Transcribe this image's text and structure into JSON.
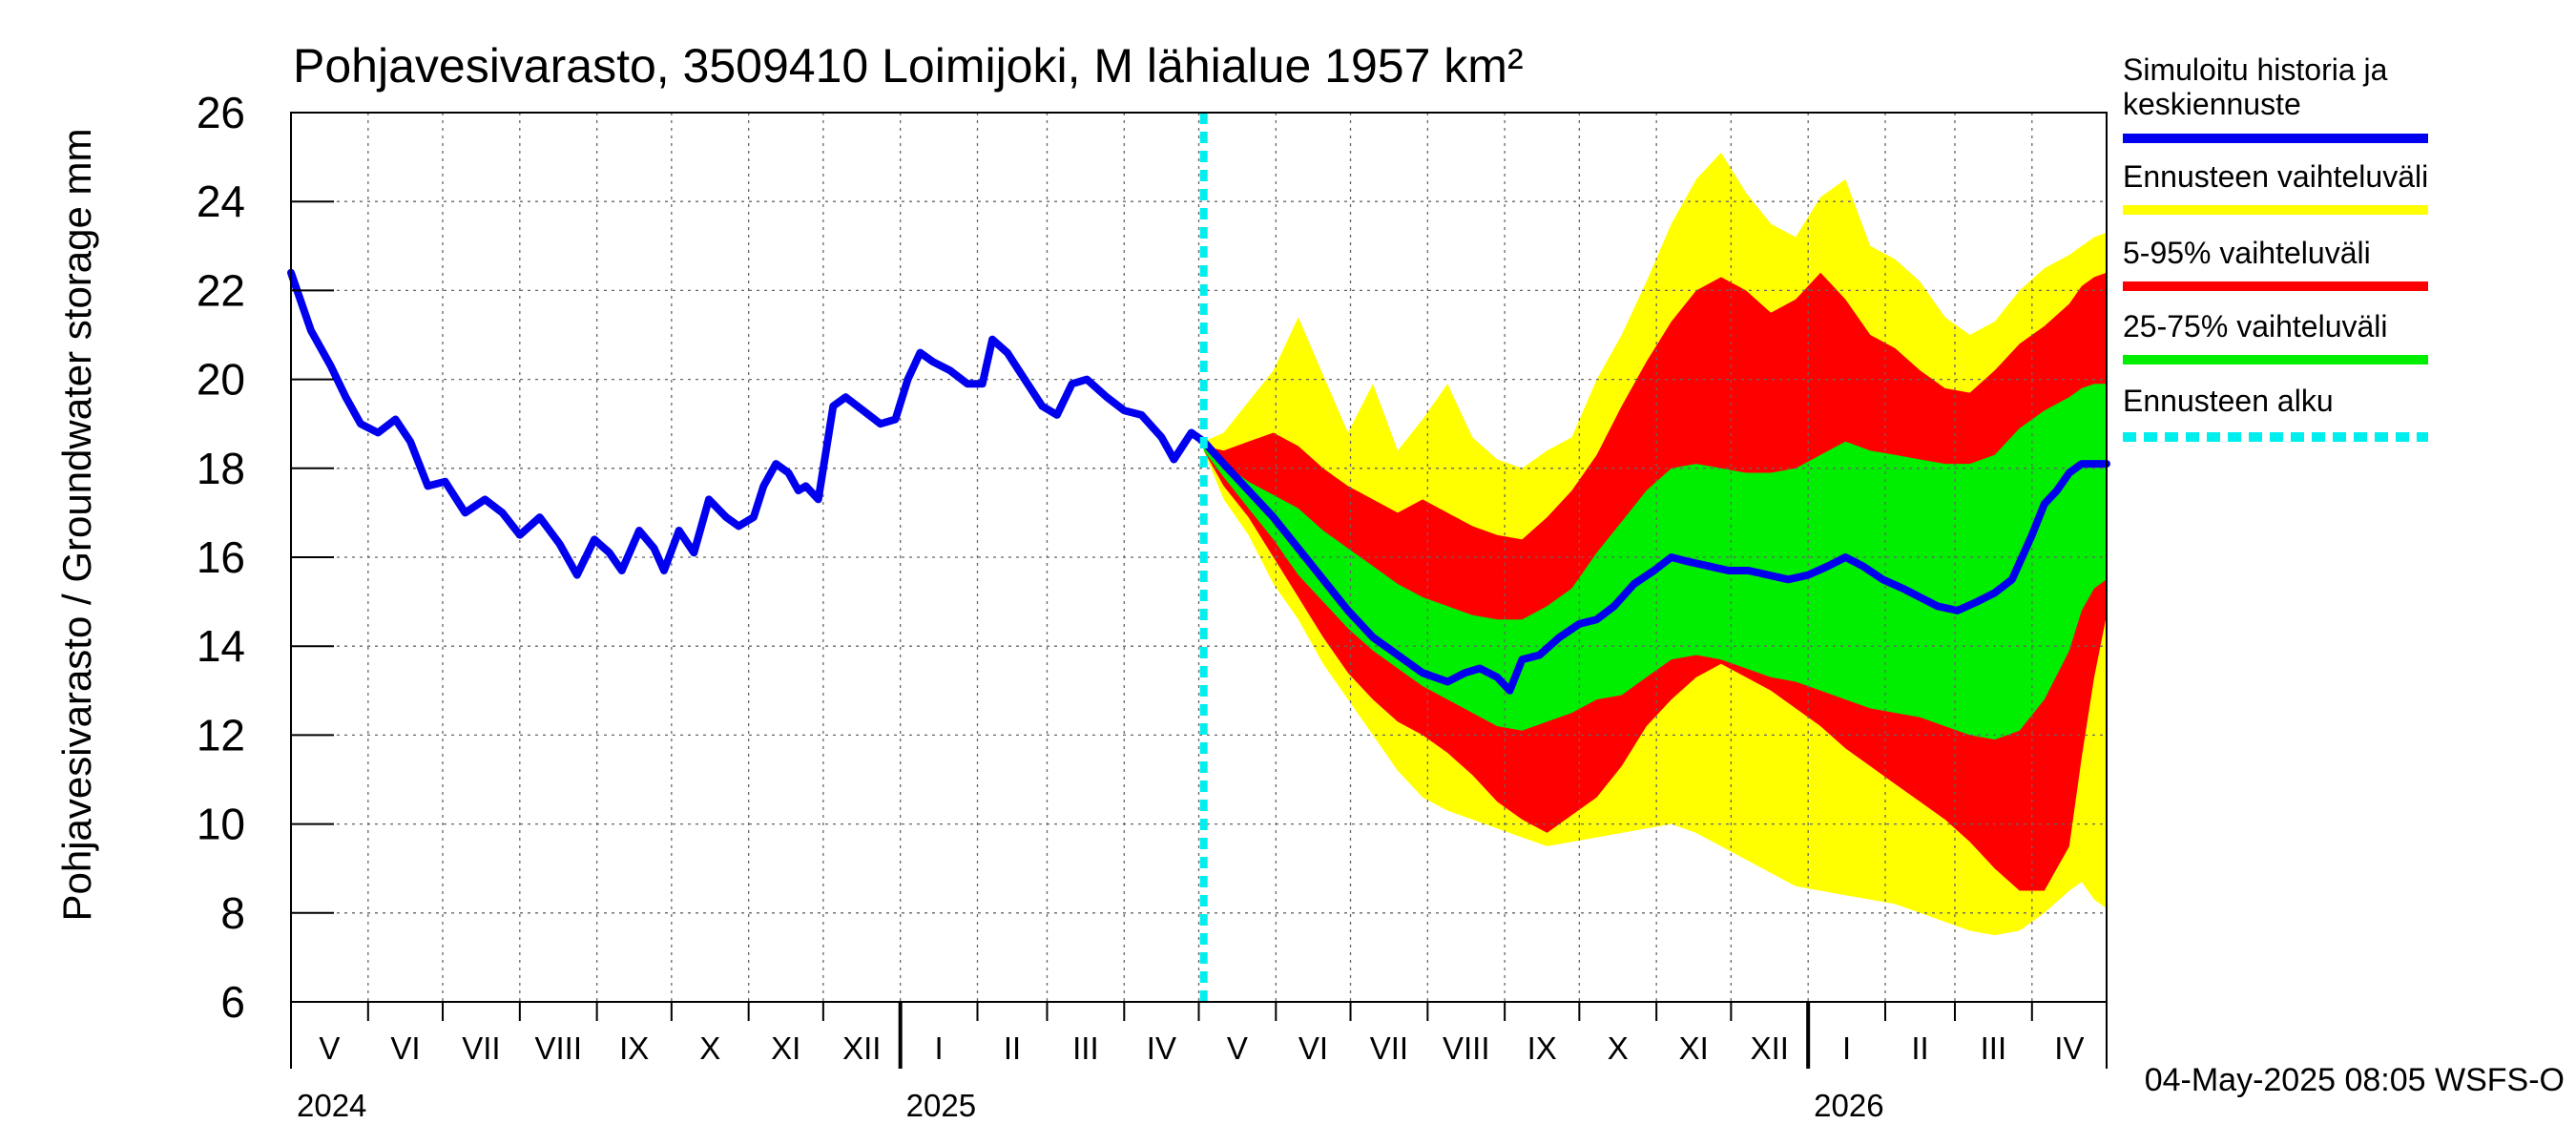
{
  "chart_data": {
    "type": "area",
    "title": "Pohjavesivarasto, 3509410 Loimijoki, M lähialue 1957 km²",
    "ylabel": "Pohjavesivarasto / Groundwater storage   mm",
    "ylim": [
      6,
      26
    ],
    "yticks": [
      6,
      8,
      10,
      12,
      14,
      16,
      18,
      20,
      22,
      24,
      26
    ],
    "grid": true,
    "legend_position": "right",
    "x_range_days": [
      0,
      730
    ],
    "forecast_start_day": 367,
    "months": [
      {
        "label": "V",
        "start": 0,
        "end": 31
      },
      {
        "label": "VI",
        "start": 31,
        "end": 61
      },
      {
        "label": "VII",
        "start": 61,
        "end": 92
      },
      {
        "label": "VIII",
        "start": 92,
        "end": 123
      },
      {
        "label": "IX",
        "start": 123,
        "end": 153
      },
      {
        "label": "X",
        "start": 153,
        "end": 184
      },
      {
        "label": "XI",
        "start": 184,
        "end": 214
      },
      {
        "label": "XII",
        "start": 214,
        "end": 245
      },
      {
        "label": "I",
        "start": 245,
        "end": 276
      },
      {
        "label": "II",
        "start": 276,
        "end": 304
      },
      {
        "label": "III",
        "start": 304,
        "end": 335
      },
      {
        "label": "IV",
        "start": 335,
        "end": 365
      },
      {
        "label": "V",
        "start": 365,
        "end": 396
      },
      {
        "label": "VI",
        "start": 396,
        "end": 426
      },
      {
        "label": "VII",
        "start": 426,
        "end": 457
      },
      {
        "label": "VIII",
        "start": 457,
        "end": 488
      },
      {
        "label": "IX",
        "start": 488,
        "end": 518
      },
      {
        "label": "X",
        "start": 518,
        "end": 549
      },
      {
        "label": "XI",
        "start": 549,
        "end": 579
      },
      {
        "label": "XII",
        "start": 579,
        "end": 610
      },
      {
        "label": "I",
        "start": 610,
        "end": 641
      },
      {
        "label": "II",
        "start": 641,
        "end": 669
      },
      {
        "label": "III",
        "start": 669,
        "end": 700
      },
      {
        "label": "IV",
        "start": 700,
        "end": 730
      }
    ],
    "years": [
      {
        "label": "2024",
        "day": 0
      },
      {
        "label": "2025",
        "day": 245
      },
      {
        "label": "2026",
        "day": 610
      }
    ],
    "series": [
      {
        "name": "Ennusteen vaihteluväli",
        "color": "#ffff00",
        "x": [
          367,
          375,
          385,
          395,
          405,
          415,
          425,
          435,
          445,
          455,
          465,
          475,
          485,
          495,
          505,
          515,
          525,
          535,
          545,
          555,
          565,
          575,
          585,
          595,
          605,
          615,
          625,
          635,
          645,
          655,
          665,
          675,
          685,
          695,
          705,
          715,
          720,
          725,
          730
        ],
        "upper": [
          18.6,
          18.8,
          19.5,
          20.2,
          21.4,
          20.1,
          18.8,
          19.9,
          18.4,
          19.1,
          19.9,
          18.7,
          18.2,
          18.0,
          18.4,
          18.7,
          20.0,
          21.0,
          22.2,
          23.5,
          24.5,
          25.1,
          24.2,
          23.5,
          23.2,
          24.1,
          24.5,
          23.0,
          22.7,
          22.2,
          21.4,
          21.0,
          21.3,
          22.0,
          22.5,
          22.8,
          23.0,
          23.2,
          23.3
        ],
        "lower": [
          18.4,
          17.3,
          16.5,
          15.4,
          14.6,
          13.6,
          12.8,
          12.0,
          11.2,
          10.6,
          10.3,
          10.1,
          9.9,
          9.7,
          9.5,
          9.6,
          9.7,
          9.8,
          9.9,
          10.0,
          9.8,
          9.5,
          9.2,
          8.9,
          8.6,
          8.5,
          8.4,
          8.3,
          8.2,
          8.0,
          7.8,
          7.6,
          7.5,
          7.6,
          8.0,
          8.5,
          8.7,
          8.3,
          8.1
        ]
      },
      {
        "name": "5-95% vaihteluväli",
        "color": "#ff0000",
        "x": [
          367,
          375,
          385,
          395,
          405,
          415,
          425,
          435,
          445,
          455,
          465,
          475,
          485,
          495,
          505,
          515,
          525,
          535,
          545,
          555,
          565,
          575,
          585,
          595,
          605,
          615,
          625,
          635,
          645,
          655,
          665,
          675,
          685,
          695,
          705,
          715,
          720,
          725,
          730
        ],
        "upper": [
          18.5,
          18.4,
          18.6,
          18.8,
          18.5,
          18.0,
          17.6,
          17.3,
          17.0,
          17.3,
          17.0,
          16.7,
          16.5,
          16.4,
          16.9,
          17.5,
          18.3,
          19.4,
          20.4,
          21.3,
          22.0,
          22.3,
          22.0,
          21.5,
          21.8,
          22.4,
          21.8,
          21.0,
          20.7,
          20.2,
          19.8,
          19.7,
          20.2,
          20.8,
          21.2,
          21.7,
          22.1,
          22.3,
          22.4
        ],
        "lower": [
          18.4,
          17.6,
          16.9,
          16.0,
          15.1,
          14.2,
          13.4,
          12.8,
          12.3,
          12.0,
          11.6,
          11.1,
          10.5,
          10.1,
          9.8,
          10.2,
          10.6,
          11.3,
          12.2,
          12.8,
          13.3,
          13.6,
          13.3,
          13.0,
          12.6,
          12.2,
          11.7,
          11.3,
          10.9,
          10.5,
          10.1,
          9.6,
          9.0,
          8.5,
          8.5,
          9.5,
          11.5,
          13.3,
          14.7
        ]
      },
      {
        "name": "25-75% vaihteluväli",
        "color": "#00ee00",
        "x": [
          367,
          375,
          385,
          395,
          405,
          415,
          425,
          435,
          445,
          455,
          465,
          475,
          485,
          495,
          505,
          515,
          525,
          535,
          545,
          555,
          565,
          575,
          585,
          595,
          605,
          615,
          625,
          635,
          645,
          655,
          665,
          675,
          685,
          695,
          705,
          715,
          720,
          725,
          730
        ],
        "upper": [
          18.5,
          18.1,
          17.7,
          17.4,
          17.1,
          16.6,
          16.2,
          15.8,
          15.4,
          15.1,
          14.9,
          14.7,
          14.6,
          14.6,
          14.9,
          15.3,
          16.1,
          16.8,
          17.5,
          18.0,
          18.1,
          18.0,
          17.9,
          17.9,
          18.0,
          18.3,
          18.6,
          18.4,
          18.3,
          18.2,
          18.1,
          18.1,
          18.3,
          18.9,
          19.3,
          19.6,
          19.8,
          19.9,
          19.9
        ],
        "lower": [
          18.4,
          17.8,
          17.1,
          16.4,
          15.6,
          15.0,
          14.4,
          13.9,
          13.5,
          13.1,
          12.8,
          12.5,
          12.2,
          12.1,
          12.3,
          12.5,
          12.8,
          12.9,
          13.3,
          13.7,
          13.8,
          13.7,
          13.5,
          13.3,
          13.2,
          13.0,
          12.8,
          12.6,
          12.5,
          12.4,
          12.2,
          12.0,
          11.9,
          12.1,
          12.8,
          13.9,
          14.8,
          15.3,
          15.5
        ]
      },
      {
        "name": "Simuloitu historia ja keskiennuste",
        "color": "#0000ee",
        "x": [
          0,
          8,
          16,
          22,
          28,
          35,
          42,
          48,
          55,
          62,
          70,
          78,
          85,
          92,
          100,
          108,
          115,
          122,
          128,
          133,
          140,
          146,
          150,
          156,
          162,
          168,
          175,
          180,
          186,
          190,
          195,
          200,
          204,
          207,
          212,
          218,
          223,
          230,
          237,
          243,
          248,
          253,
          258,
          265,
          272,
          278,
          282,
          288,
          295,
          302,
          308,
          314,
          320,
          328,
          335,
          342,
          350,
          355,
          362,
          367,
          375,
          385,
          395,
          405,
          415,
          425,
          435,
          445,
          455,
          465,
          472,
          478,
          485,
          490,
          495,
          502,
          510,
          518,
          525,
          532,
          540,
          548,
          555,
          562,
          570,
          578,
          586,
          594,
          602,
          610,
          618,
          625,
          632,
          640,
          648,
          655,
          662,
          670,
          678,
          685,
          692,
          700,
          705,
          710,
          715,
          720,
          725,
          730
        ],
        "values": [
          22.4,
          21.1,
          20.3,
          19.6,
          19.0,
          18.8,
          19.1,
          18.6,
          17.6,
          17.7,
          17.0,
          17.3,
          17.0,
          16.5,
          16.9,
          16.3,
          15.6,
          16.4,
          16.1,
          15.7,
          16.6,
          16.2,
          15.7,
          16.6,
          16.1,
          17.3,
          16.9,
          16.7,
          16.9,
          17.6,
          18.1,
          17.9,
          17.5,
          17.6,
          17.3,
          19.4,
          19.6,
          19.3,
          19.0,
          19.1,
          20.0,
          20.6,
          20.4,
          20.2,
          19.9,
          19.9,
          20.9,
          20.6,
          20.0,
          19.4,
          19.2,
          19.9,
          20.0,
          19.6,
          19.3,
          19.2,
          18.7,
          18.2,
          18.8,
          18.6,
          18.1,
          17.5,
          16.9,
          16.2,
          15.5,
          14.8,
          14.2,
          13.8,
          13.4,
          13.2,
          13.4,
          13.5,
          13.3,
          13.0,
          13.7,
          13.8,
          14.2,
          14.5,
          14.6,
          14.9,
          15.4,
          15.7,
          16.0,
          15.9,
          15.8,
          15.7,
          15.7,
          15.6,
          15.5,
          15.6,
          15.8,
          16.0,
          15.8,
          15.5,
          15.3,
          15.1,
          14.9,
          14.8,
          15.0,
          15.2,
          15.5,
          16.5,
          17.2,
          17.5,
          17.9,
          18.1,
          18.1,
          18.1
        ]
      }
    ],
    "legend": [
      {
        "label": "Simuloitu historia ja keskiennuste",
        "color": "#0000ee",
        "style": "solid"
      },
      {
        "label": "Ennusteen vaihteluväli",
        "color": "#ffff00",
        "style": "solid"
      },
      {
        "label": "5-95% vaihteluväli",
        "color": "#ff0000",
        "style": "solid"
      },
      {
        "label": "25-75% vaihteluväli",
        "color": "#00ee00",
        "style": "solid"
      },
      {
        "label": "Ennusteen alku",
        "color": "#00eeee",
        "style": "dashed"
      }
    ],
    "forecast_line_color": "#00eeee",
    "footer": "04-May-2025 08:05 WSFS-O"
  }
}
